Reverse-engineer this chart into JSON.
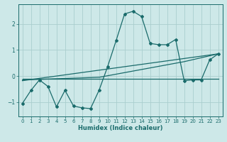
{
  "xlabel": "Humidex (Indice chaleur)",
  "bg_color": "#cde8e8",
  "line_color": "#1a6b6b",
  "grid_color": "#aacece",
  "xlim": [
    -0.5,
    23.5
  ],
  "ylim": [
    -1.55,
    2.75
  ],
  "xticks": [
    0,
    1,
    2,
    3,
    4,
    5,
    6,
    7,
    8,
    9,
    10,
    11,
    12,
    13,
    14,
    15,
    16,
    17,
    18,
    19,
    20,
    21,
    22,
    23
  ],
  "yticks": [
    -1,
    0,
    1,
    2
  ],
  "line1_x": [
    0,
    1,
    2,
    3,
    4,
    5,
    6,
    7,
    8,
    9,
    10,
    11,
    12,
    13,
    14,
    15,
    16,
    17,
    18,
    19,
    20,
    21,
    22,
    23
  ],
  "line1_y": [
    -1.05,
    -0.55,
    -0.15,
    -0.4,
    -1.18,
    -0.55,
    -1.15,
    -1.22,
    -1.25,
    -0.55,
    0.35,
    1.35,
    2.38,
    2.48,
    2.28,
    1.25,
    1.2,
    1.2,
    1.4,
    -0.18,
    -0.15,
    -0.15,
    0.62,
    0.85
  ],
  "line2_x": [
    0,
    23
  ],
  "line2_y": [
    -0.18,
    0.85
  ],
  "line3_x": [
    0,
    19,
    23
  ],
  "line3_y": [
    -0.12,
    -0.12,
    -0.12
  ],
  "line4_x": [
    0,
    9,
    19,
    23
  ],
  "line4_y": [
    -0.15,
    -0.05,
    0.55,
    0.85
  ],
  "tick_fontsize": 5.0,
  "xlabel_fontsize": 6.0
}
